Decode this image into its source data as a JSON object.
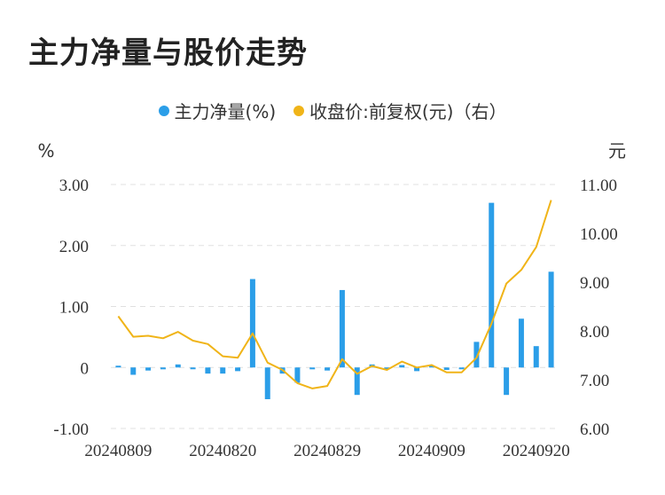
{
  "title": "主力净量与股价走势",
  "legend": {
    "series1": "主力净量(%)",
    "series2": "收盘价:前复权(元)（右）"
  },
  "colors": {
    "bar": "#2b9ee8",
    "line": "#f0b418",
    "grid": "#e0e0e0"
  },
  "chart_data": {
    "type": "bar+line",
    "left_unit": "%",
    "right_unit": "元",
    "left_ticks": [
      "3.00",
      "2.00",
      "1.00",
      "0",
      "-1.00"
    ],
    "right_ticks": [
      "11.00",
      "10.00",
      "9.00",
      "8.00",
      "7.00",
      "6.00"
    ],
    "left_ylim": [
      -1.0,
      3.0
    ],
    "right_ylim": [
      6.0,
      11.0
    ],
    "x_tick_labels": [
      "20240809",
      "20240820",
      "20240829",
      "20240909",
      "20240920"
    ],
    "x_tick_positions": [
      0,
      7,
      14,
      21,
      28
    ],
    "net_volume": [
      0.02,
      -0.12,
      -0.05,
      -0.03,
      0.05,
      -0.02,
      -0.1,
      -0.1,
      -0.06,
      1.45,
      -0.52,
      -0.1,
      -0.25,
      -0.03,
      -0.05,
      1.27,
      -0.45,
      0.05,
      -0.02,
      0.04,
      -0.06,
      0.0,
      -0.04,
      -0.02,
      0.42,
      2.7,
      -0.45,
      0.8,
      0.35,
      1.57
    ],
    "close_price": [
      8.3,
      7.88,
      7.9,
      7.85,
      7.98,
      7.8,
      7.73,
      7.48,
      7.45,
      7.95,
      7.35,
      7.2,
      6.93,
      6.82,
      6.87,
      7.42,
      7.12,
      7.28,
      7.2,
      7.37,
      7.25,
      7.3,
      7.15,
      7.15,
      7.45,
      8.15,
      8.97,
      9.25,
      9.72,
      10.68
    ]
  }
}
